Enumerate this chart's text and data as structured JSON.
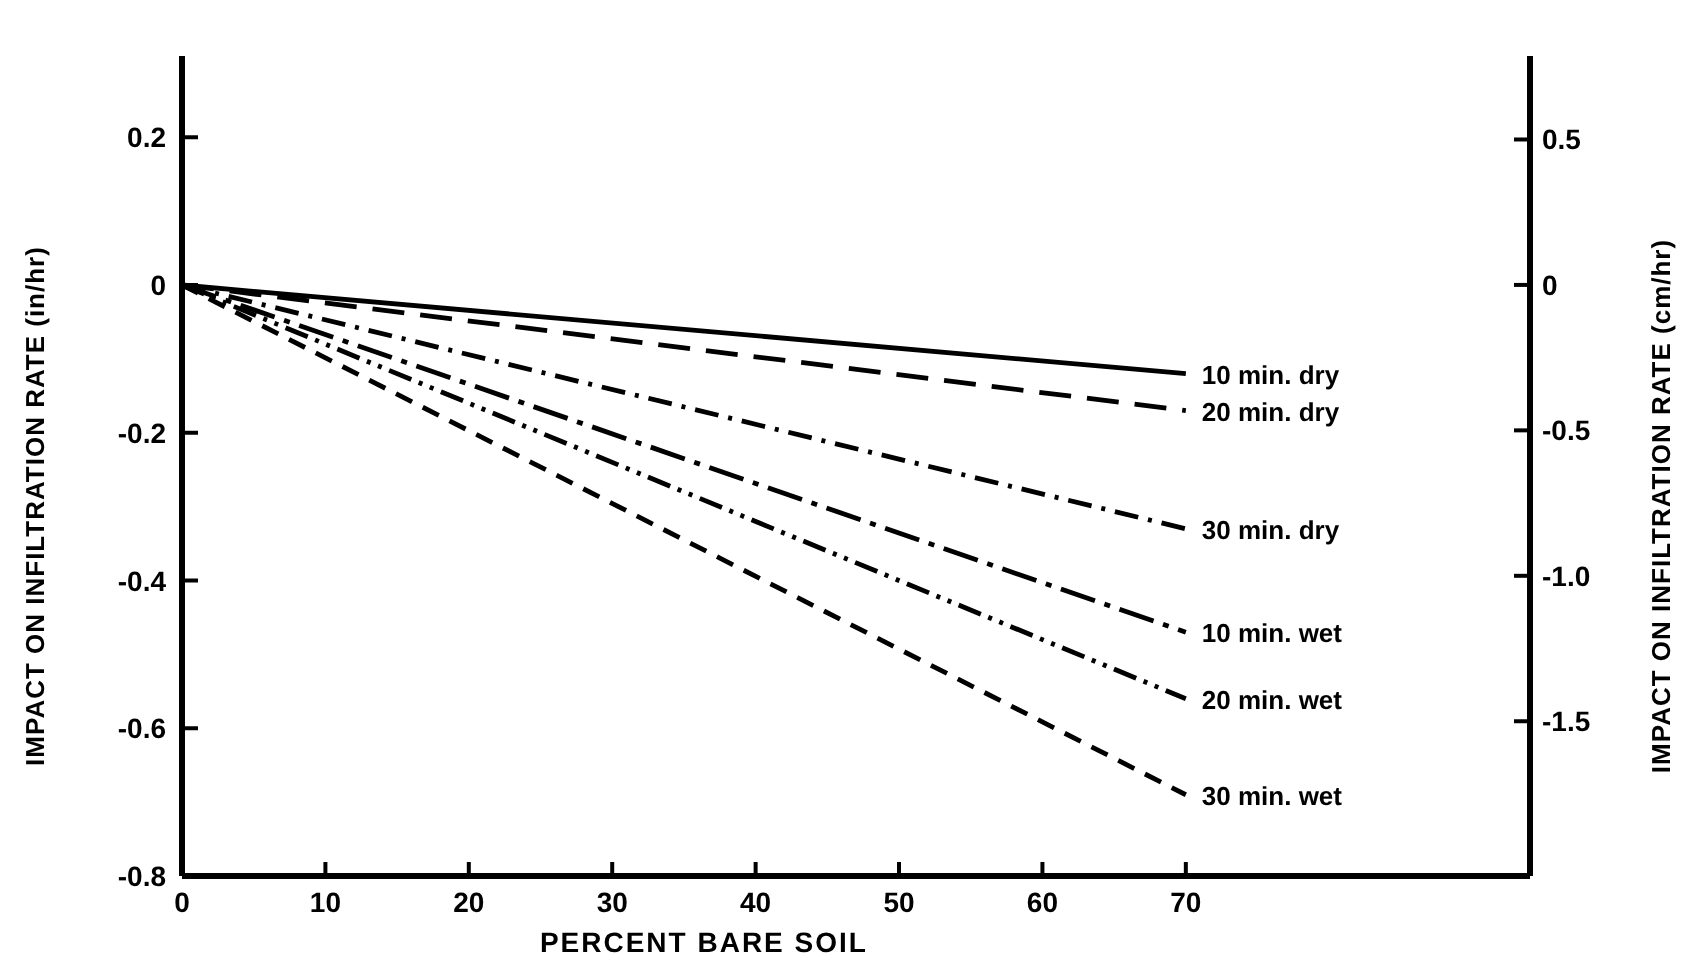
{
  "chart_data": {
    "type": "line",
    "xlabel": "PERCENT BARE SOIL",
    "ylabel": "IMPACT ON INFILTRATION RATE (in/hr)",
    "y2label": "IMPACT ON INFILTRATION RATE (cm/hr)",
    "x": [
      0,
      70
    ],
    "xlim": [
      0,
      94
    ],
    "xticks": [
      0,
      10,
      20,
      30,
      40,
      50,
      60,
      70
    ],
    "ylim": [
      -0.8,
      0.31
    ],
    "yticks": [
      0.2,
      0,
      -0.2,
      -0.4,
      -0.6,
      -0.8
    ],
    "y2lim": [
      -2.032,
      0.787
    ],
    "y2ticks": [
      0.5,
      0,
      -0.5,
      {
        "value": -1.0,
        "label": "-1.0"
      },
      -1.5
    ],
    "grid": false,
    "marker": "none",
    "series": [
      {
        "name": "10 min. dry",
        "color": "#000000",
        "line_style": "solid",
        "values": [
          0,
          -0.12
        ]
      },
      {
        "name": "20 min. dry",
        "color": "#000000",
        "line_style": "longdash",
        "values": [
          0,
          -0.17
        ]
      },
      {
        "name": "30 min. dry",
        "color": "#000000",
        "line_style": "dashdot",
        "values": [
          0,
          -0.33
        ]
      },
      {
        "name": "10 min. wet",
        "color": "#000000",
        "line_style": "longdashdot",
        "values": [
          0,
          -0.47
        ]
      },
      {
        "name": "20 min. wet",
        "color": "#000000",
        "line_style": "dashdotdot",
        "values": [
          0,
          -0.56
        ]
      },
      {
        "name": "30 min. wet",
        "color": "#000000",
        "line_style": "dashed",
        "values": [
          0,
          -0.69
        ]
      }
    ]
  }
}
